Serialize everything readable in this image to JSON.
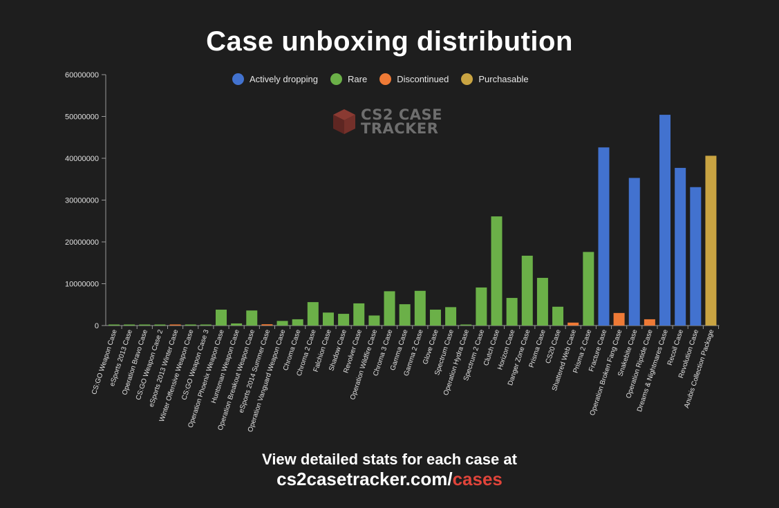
{
  "title": "Case unboxing distribution",
  "watermark": {
    "line1": "CS2 CASE",
    "line2": "TRACKER"
  },
  "footer": {
    "line1": "View detailed stats for each case at",
    "url_prefix": "cs2casetracker.com/",
    "url_suffix": "cases"
  },
  "colors": {
    "Actively dropping": "#4272cf",
    "Rare": "#6bb048",
    "Discontinued": "#ee7a36",
    "Purchasable": "#c9a442"
  },
  "chart_data": {
    "type": "bar",
    "title": "Case unboxing distribution",
    "xlabel": "",
    "ylabel": "",
    "ylim": [
      0,
      60000000
    ],
    "yticks": [
      "0",
      "10000000",
      "20000000",
      "30000000",
      "40000000",
      "50000000",
      "60000000"
    ],
    "legend_position": "top-center",
    "legend": [
      "Actively dropping",
      "Rare",
      "Discontinued",
      "Purchasable"
    ],
    "grid": false,
    "categories": [
      "CS:GO Weapon Case",
      "eSports 2013 Case",
      "Operation Bravo Case",
      "CS:GO Weapon Case 2",
      "eSports 2013 Winter Case",
      "Winter Offensive Weapon Case",
      "CS:GO Weapon Case 3",
      "Operation Phoenix Weapon Case",
      "Huntsman Weapon Case",
      "Operation Breakout Weapon Case",
      "eSports 2014 Summer Case",
      "Operation Vanguard Weapon Case",
      "Chroma Case",
      "Chroma 2 Case",
      "Falchion Case",
      "Shadow Case",
      "Revolver Case",
      "Operation Wildfire Case",
      "Chroma 3 Case",
      "Gamma Case",
      "Gamma 2 Case",
      "Glove Case",
      "Spectrum Case",
      "Operation Hydra Case",
      "Spectrum 2 Case",
      "Clutch Case",
      "Horizon Case",
      "Danger Zone Case",
      "Prisma Case",
      "CS20 Case",
      "Shattered Web Case",
      "Prisma 2 Case",
      "Fracture Case",
      "Operation Broken Fang Case",
      "Snakebite Case",
      "Operation Riptide Case",
      "Dreams & Nightmares Case",
      "Recoil Case",
      "Revolution Case",
      "Anubis Collection Package"
    ],
    "values": [
      150000,
      80000,
      100000,
      120000,
      150000,
      250000,
      200000,
      3800000,
      500000,
      3600000,
      300000,
      1100000,
      1500000,
      5600000,
      3100000,
      2800000,
      5300000,
      2400000,
      8200000,
      5100000,
      8300000,
      3800000,
      4400000,
      150000,
      9100000,
      26100000,
      6600000,
      16700000,
      11400000,
      4500000,
      700000,
      17600000,
      42600000,
      3000000,
      35300000,
      1500000,
      50400000,
      37700000,
      33100000,
      40600000
    ],
    "groups": [
      "Rare",
      "Rare",
      "Rare",
      "Rare",
      "Discontinued",
      "Rare",
      "Rare",
      "Rare",
      "Rare",
      "Rare",
      "Discontinued",
      "Rare",
      "Rare",
      "Rare",
      "Rare",
      "Rare",
      "Rare",
      "Rare",
      "Rare",
      "Rare",
      "Rare",
      "Rare",
      "Rare",
      "Rare",
      "Rare",
      "Rare",
      "Rare",
      "Rare",
      "Rare",
      "Rare",
      "Discontinued",
      "Rare",
      "Actively dropping",
      "Discontinued",
      "Actively dropping",
      "Discontinued",
      "Actively dropping",
      "Actively dropping",
      "Actively dropping",
      "Purchasable"
    ]
  }
}
